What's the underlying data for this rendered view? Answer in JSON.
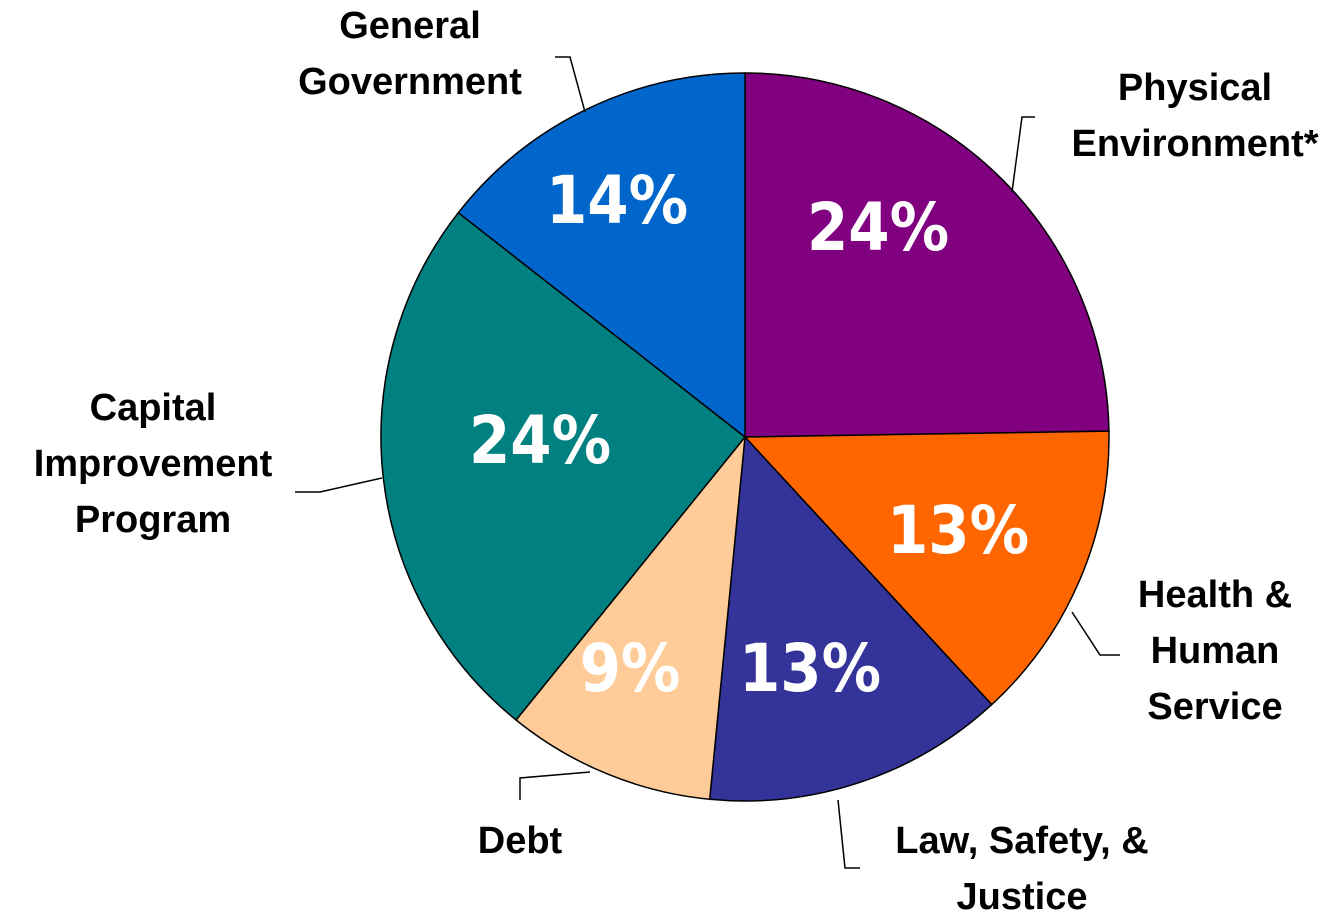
{
  "chart_data": {
    "type": "pie",
    "categories": [
      "Physical\nEnvironment*",
      "Health &\nHuman\nService",
      "Law, Safety, &\nJustice",
      "Debt",
      "Capital\nImprovement\nProgram",
      "General\nGovernment"
    ],
    "values": [
      24,
      13,
      13,
      9,
      24,
      14
    ],
    "value_labels": [
      "24%",
      "13%",
      "13%",
      "9%",
      "24%",
      "14%"
    ],
    "colors": [
      "#800080",
      "#ff6600",
      "#333399",
      "#ffcc99",
      "#008080",
      "#0066cc"
    ]
  }
}
